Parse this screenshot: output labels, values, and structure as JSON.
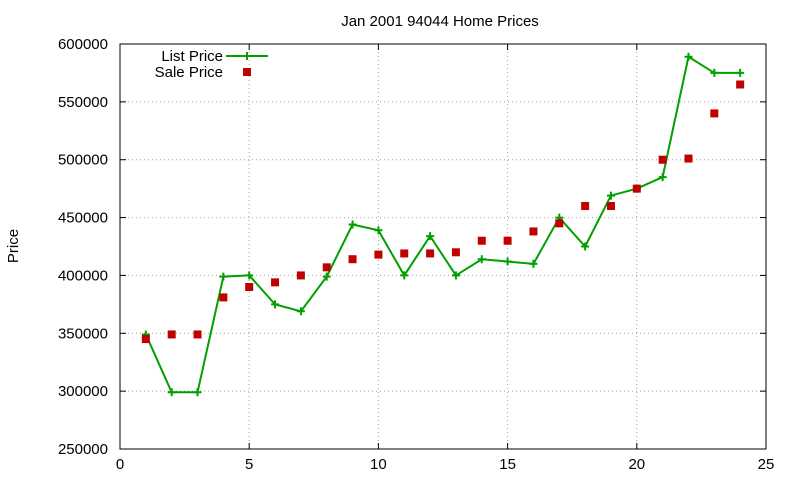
{
  "chart_data": {
    "type": "line",
    "title": "Jan 2001 94044 Home Prices",
    "xlabel": "",
    "ylabel": "Price",
    "xlim": [
      0,
      25
    ],
    "ylim": [
      250000,
      600000
    ],
    "xticks": [
      0,
      5,
      10,
      15,
      20,
      25
    ],
    "yticks": [
      250000,
      300000,
      350000,
      400000,
      450000,
      500000,
      550000,
      600000
    ],
    "grid": true,
    "legend_position": "top-left",
    "series": [
      {
        "name": "List Price",
        "style": "line+cross",
        "color": "#00a000",
        "points": [
          [
            1,
            349000
          ],
          [
            2,
            299000
          ],
          [
            3,
            299000
          ],
          [
            4,
            399000
          ],
          [
            5,
            400000
          ],
          [
            6,
            375000
          ],
          [
            7,
            369000
          ],
          [
            8,
            399000
          ],
          [
            9,
            444000
          ],
          [
            10,
            439000
          ],
          [
            11,
            400000
          ],
          [
            12,
            434000
          ],
          [
            13,
            400000
          ],
          [
            14,
            414000
          ],
          [
            15,
            412000
          ],
          [
            16,
            410000
          ],
          [
            17,
            450000
          ],
          [
            18,
            425000
          ],
          [
            19,
            469000
          ],
          [
            20,
            475000
          ],
          [
            21,
            485000
          ],
          [
            22,
            589000
          ],
          [
            23,
            575000
          ],
          [
            24,
            575000
          ]
        ]
      },
      {
        "name": "Sale Price",
        "style": "square",
        "color": "#c00000",
        "points": [
          [
            1,
            345000
          ],
          [
            2,
            349000
          ],
          [
            3,
            349000
          ],
          [
            4,
            381000
          ],
          [
            5,
            390000
          ],
          [
            6,
            394000
          ],
          [
            7,
            400000
          ],
          [
            8,
            407000
          ],
          [
            9,
            414000
          ],
          [
            10,
            418000
          ],
          [
            11,
            419000
          ],
          [
            12,
            419000
          ],
          [
            13,
            420000
          ],
          [
            14,
            430000
          ],
          [
            15,
            430000
          ],
          [
            16,
            438000
          ],
          [
            17,
            445000
          ],
          [
            18,
            460000
          ],
          [
            19,
            460000
          ],
          [
            20,
            475000
          ],
          [
            21,
            500000
          ],
          [
            22,
            501000
          ],
          [
            23,
            540000
          ],
          [
            24,
            565000
          ]
        ]
      }
    ]
  }
}
